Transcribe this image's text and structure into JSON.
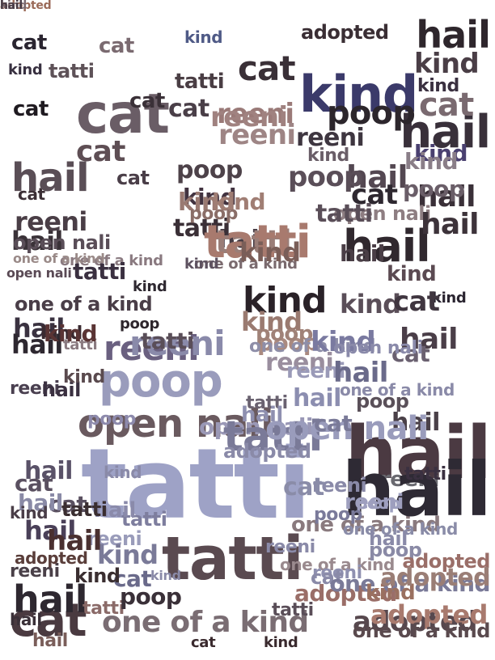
{
  "title": "",
  "words": [
    {
      "text": "tatti",
      "color": "#9ea2c6"
    },
    {
      "text": "one of a kind",
      "color": "#7a6d73"
    },
    {
      "text": "adopted",
      "color": "#57484e"
    },
    {
      "text": "open nali",
      "color": "#6a5a5f"
    },
    {
      "text": "tatti",
      "color": "#5a4a50"
    },
    {
      "text": "one of a kind",
      "color": "#8a7a7e"
    },
    {
      "text": "one of a kind",
      "color": "#9a8a8e"
    },
    {
      "text": "hail",
      "color": "#2e262c"
    },
    {
      "text": "cat",
      "color": "#4a3a40"
    },
    {
      "text": "open nali",
      "color": "#5a4a55"
    },
    {
      "text": "hail",
      "color": "#4b3a42"
    },
    {
      "text": "poop",
      "color": "#5a5059"
    },
    {
      "text": "kind",
      "color": "#4f5a86"
    },
    {
      "text": "reeni",
      "color": "#6a6a70"
    },
    {
      "text": "poop",
      "color": "#4d4249"
    },
    {
      "text": "adopted",
      "color": "#3a2e34"
    },
    {
      "text": "kind",
      "color": "#3b3a6a"
    },
    {
      "text": "kind",
      "color": "#4a3e46"
    },
    {
      "text": "kind",
      "color": "#2a2228"
    },
    {
      "text": "hail",
      "color": "#39303a"
    },
    {
      "text": "kind",
      "color": "#5b4a52"
    },
    {
      "text": "cat",
      "color": "#2a2530"
    },
    {
      "text": "cat",
      "color": "#1f1a20"
    },
    {
      "text": "kind",
      "color": "#3a3040"
    },
    {
      "text": "hail",
      "color": "#2e2a34"
    },
    {
      "text": "tatti",
      "color": "#5a4e58"
    },
    {
      "text": "adopted",
      "color": "#9a6e68"
    },
    {
      "text": "kind",
      "color": "#423340"
    },
    {
      "text": "hail",
      "color": "#30282e"
    },
    {
      "text": "kind",
      "color": "#383040"
    },
    {
      "text": "kind",
      "color": "#2a2430"
    },
    {
      "text": "cat",
      "color": "#6a5d66"
    },
    {
      "text": "kind",
      "color": "#2e2830"
    },
    {
      "text": "cat",
      "color": "#5e4e54"
    },
    {
      "text": "tatti",
      "color": "#4a3e44"
    },
    {
      "text": "cat",
      "color": "#3a3037"
    },
    {
      "text": "cat",
      "color": "#3b2f35"
    },
    {
      "text": "hail",
      "color": "#5a4e56"
    },
    {
      "text": "kind",
      "color": "#4a4070"
    },
    {
      "text": "hail",
      "color": "#544852"
    },
    {
      "text": "tatti",
      "color": "#3a2f36"
    },
    {
      "text": "reeni",
      "color": "#9a7a78"
    },
    {
      "text": "cat",
      "color": "#2e2830"
    },
    {
      "text": "poop",
      "color": "#2c262c"
    },
    {
      "text": "reeni",
      "color": "#9e8585"
    },
    {
      "text": "hail",
      "color": "#3a3038"
    },
    {
      "text": "cat",
      "color": "#7a6a70"
    },
    {
      "text": "one of a kind",
      "color": "#7a6a6e"
    },
    {
      "text": "open nali",
      "color": "#8e7e82"
    },
    {
      "text": "hail",
      "color": "#3d333a"
    },
    {
      "text": "kind",
      "color": "#5e5260"
    },
    {
      "text": "hail",
      "color": "#4a4048"
    },
    {
      "text": "hail",
      "color": "#2e2830"
    },
    {
      "text": "hail",
      "color": "#3a3038"
    },
    {
      "text": "poop",
      "color": "#2e262c"
    },
    {
      "text": "tatti",
      "color": "#5e5258"
    },
    {
      "text": "cat",
      "color": "#3a3037"
    },
    {
      "text": "cat",
      "color": "#4a3f48"
    },
    {
      "text": "hail",
      "color": "#463c44"
    },
    {
      "text": "one of a kind",
      "color": "#8a7a80"
    },
    {
      "text": "hail",
      "color": "#3a3238"
    },
    {
      "text": "kind",
      "color": "#9a7a72"
    },
    {
      "text": "poop",
      "color": "#8a6e68"
    },
    {
      "text": "reeni",
      "color": "#a08280"
    },
    {
      "text": "one of a kind",
      "color": "#9a8a88"
    },
    {
      "text": "kind",
      "color": "#a07e74"
    },
    {
      "text": "tatti",
      "color": "#9a7e78"
    },
    {
      "text": "poop",
      "color": "#aa8a80"
    },
    {
      "text": "cat",
      "color": "#7a6a70"
    },
    {
      "text": "hail",
      "color": "#3a3240"
    },
    {
      "text": "kind",
      "color": "#5a4e58"
    },
    {
      "text": "cat",
      "color": "#403640"
    },
    {
      "text": "tatti",
      "color": "#5a4e58"
    },
    {
      "text": "hail",
      "color": "#4a3e46"
    },
    {
      "text": "reeni",
      "color": "#4a3e46"
    },
    {
      "text": "tatti",
      "color": "#3a3040"
    },
    {
      "text": "reeni",
      "color": "#3e3640"
    },
    {
      "text": "open nali",
      "color": "#5a4e58"
    },
    {
      "text": "kind",
      "color": "#6a5e68"
    },
    {
      "text": "cat",
      "color": "#4a3e48"
    },
    {
      "text": "poop",
      "color": "#5a4e58"
    },
    {
      "text": "tatti",
      "color": "#a87a6e"
    },
    {
      "text": "kind",
      "color": "#9a7a70"
    },
    {
      "text": "poop",
      "color": "#a08278"
    },
    {
      "text": "hail",
      "color": "#2e2830"
    },
    {
      "text": "tatti",
      "color": "#3a3040"
    },
    {
      "text": "reeni",
      "color": "#4a4050"
    },
    {
      "text": "one of a kind",
      "color": "#4a3e48"
    },
    {
      "text": "reeni",
      "color": "#4a4048"
    },
    {
      "text": "adopted",
      "color": "#5a3e3a"
    },
    {
      "text": "hail",
      "color": "#4a3e48"
    },
    {
      "text": "poop",
      "color": "#6a5e68"
    },
    {
      "text": "kind",
      "color": "#8a7e88"
    },
    {
      "text": "kind",
      "color": "#3a2a30"
    },
    {
      "text": "kind",
      "color": "#7a5e58"
    },
    {
      "text": "tatti",
      "color": "#8a7a80"
    },
    {
      "text": "cat",
      "color": "#5a5060"
    },
    {
      "text": "reeni",
      "color": "#6a6080"
    },
    {
      "text": "tatti",
      "color": "#6a6270"
    },
    {
      "text": "cat",
      "color": "#5a5060"
    },
    {
      "text": "hail",
      "color": "#4a4058"
    },
    {
      "text": "cat",
      "color": "#6a6070"
    },
    {
      "text": "hail",
      "color": "#5a5268"
    },
    {
      "text": "kind",
      "color": "#5a3434"
    },
    {
      "text": "reeni",
      "color": "#8a8aaa"
    },
    {
      "text": "one of a kind",
      "color": "#8e8ea8"
    },
    {
      "text": "hail",
      "color": "#8a8aa6"
    },
    {
      "text": "reeni",
      "color": "#9a8e9e"
    },
    {
      "text": "poop",
      "color": "#9a9cbc"
    },
    {
      "text": "open nali",
      "color": "#9a98b6"
    },
    {
      "text": "hail",
      "color": "#3a3040"
    },
    {
      "text": "tatti",
      "color": "#5a4e58"
    },
    {
      "text": "kind",
      "color": "#5a4a4e"
    },
    {
      "text": "poop",
      "color": "#8d8aac"
    },
    {
      "text": "one of a kind",
      "color": "#8a8aa8"
    },
    {
      "text": "reeni",
      "color": "#9a9ab8"
    },
    {
      "text": "hail",
      "color": "#6a6a8a"
    },
    {
      "text": "kind",
      "color": "#7a7aa0"
    },
    {
      "text": "open nali",
      "color": "#8a8aaa"
    },
    {
      "text": "kind",
      "color": "#8a8aa8"
    },
    {
      "text": "tatti",
      "color": "#7a7a98"
    },
    {
      "text": "open nali",
      "color": "#9a9cbc"
    },
    {
      "text": "hail",
      "color": "#8c8eb0"
    },
    {
      "text": "poop",
      "color": "#9ea0c0"
    },
    {
      "text": "adopted",
      "color": "#8a8aa8"
    },
    {
      "text": "reeni",
      "color": "#8a8aa8"
    },
    {
      "text": "poop",
      "color": "#7a7a9a"
    },
    {
      "text": "one of a kind",
      "color": "#8a8ca8"
    },
    {
      "text": "tatti",
      "color": "#7e7e9e"
    },
    {
      "text": "cat",
      "color": "#8a8ca8"
    },
    {
      "text": "hail",
      "color": "#8a8aaa"
    },
    {
      "text": "reeni",
      "color": "#8f90b0"
    },
    {
      "text": "hail",
      "color": "#8f90b0"
    },
    {
      "text": "cat",
      "color": "#7a7a98"
    },
    {
      "text": "reeni",
      "color": "#9e9fbe"
    },
    {
      "text": "cat",
      "color": "#8a8aa8"
    },
    {
      "text": "reeni",
      "color": "#9a9cba"
    },
    {
      "text": "hail",
      "color": "#8a8aa8"
    },
    {
      "text": "kind",
      "color": "#7a7a98"
    },
    {
      "text": "reeni",
      "color": "#8a8aa8"
    },
    {
      "text": "poop",
      "color": "#8a8aa6"
    },
    {
      "text": "kind",
      "color": "#8a8aa8"
    },
    {
      "text": "one of a kind",
      "color": "#7a7a98"
    },
    {
      "text": "cat",
      "color": "#6a6a8a"
    },
    {
      "text": "adopted",
      "color": "#9a6e68"
    },
    {
      "text": "kind",
      "color": "#9a7060"
    },
    {
      "text": "adopted",
      "color": "#9a7e76"
    },
    {
      "text": "hail",
      "color": "#7a5e5a"
    },
    {
      "text": "tatti",
      "color": "#8a6a68"
    },
    {
      "text": "hail",
      "color": "#4a3030"
    },
    {
      "text": "poop",
      "color": "#3a3038"
    },
    {
      "text": "adopted",
      "color": "#a87a6e"
    },
    {
      "text": "cat",
      "color": "#3a2a2e"
    },
    {
      "text": "kind",
      "color": "#3a2a2e"
    },
    {
      "text": "kind",
      "color": "#4a3e48"
    },
    {
      "text": "one of a kind",
      "color": "#5a4a4e"
    },
    {
      "text": "kind",
      "color": "#3a2e30"
    },
    {
      "text": "tatti",
      "color": "#3a2e30"
    },
    {
      "text": "adopted",
      "color": "#9a6a58"
    },
    {
      "text": "hail",
      "color": "#7a5a58"
    },
    {
      "text": "kind",
      "color": "#7a6a70"
    },
    {
      "text": "hail",
      "color": "#4a3e48"
    }
  ]
}
